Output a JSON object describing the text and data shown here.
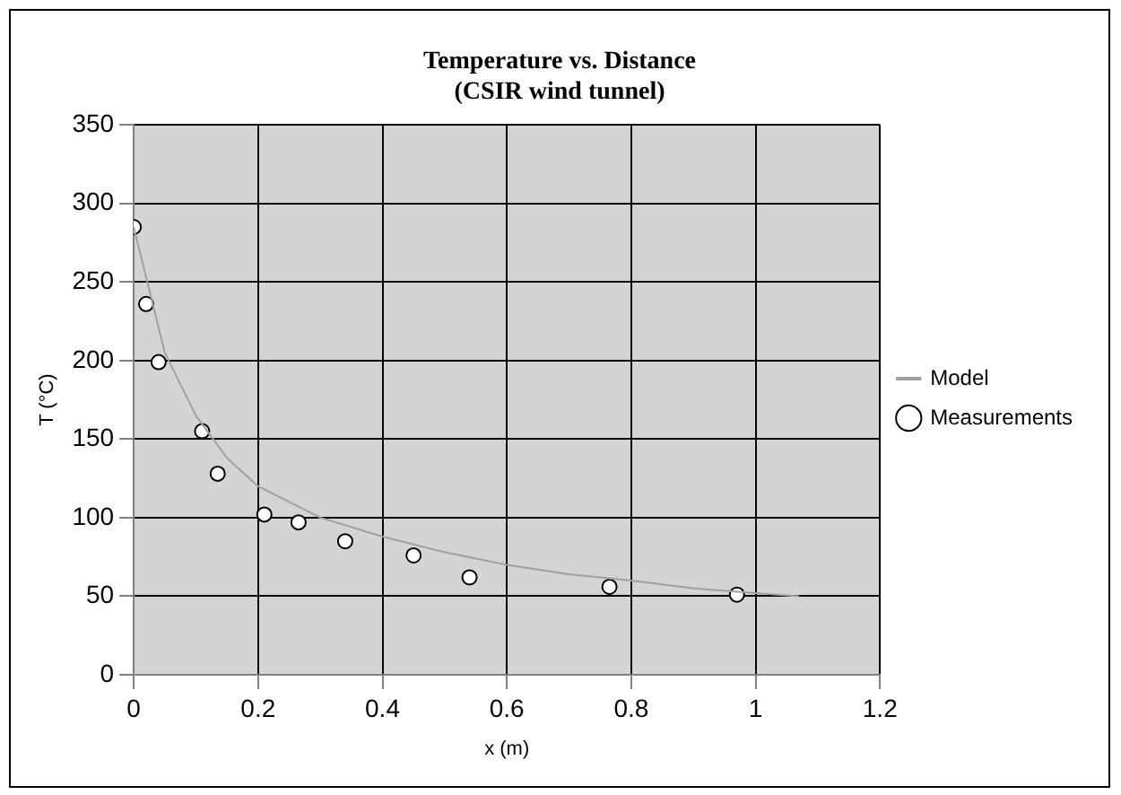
{
  "chart_data": {
    "type": "scatter",
    "title": "Temperature vs. Distance\n(CSIR wind tunnel)",
    "xlabel": "x (m)",
    "ylabel": "T (°C)",
    "xlim": [
      0,
      1.2
    ],
    "xticks": [
      0,
      0.2,
      0.4,
      0.6,
      0.8,
      1,
      1.2
    ],
    "ylim": [
      0,
      350
    ],
    "yticks": [
      0,
      50,
      100,
      150,
      200,
      250,
      300,
      350
    ],
    "grid": true,
    "legend": "right",
    "series": [
      {
        "name": "Model",
        "type": "line",
        "color": "#a0a0a0",
        "marker": "none",
        "line_style": "solid",
        "x": [
          0,
          0.05,
          0.1,
          0.15,
          0.2,
          0.3,
          0.4,
          0.5,
          0.6,
          0.7,
          0.8,
          0.9,
          1.0,
          1.07
        ],
        "values": [
          285,
          205,
          165,
          138,
          120,
          100,
          88,
          78,
          70,
          64,
          60,
          55,
          52,
          50
        ]
      },
      {
        "name": "Measurements",
        "type": "scatter",
        "color": "#ffffff",
        "marker": "circle",
        "x": [
          0,
          0.02,
          0.04,
          0.11,
          0.135,
          0.21,
          0.265,
          0.34,
          0.45,
          0.54,
          0.765,
          0.97
        ],
        "values": [
          285,
          236,
          199,
          155,
          128,
          102,
          97,
          85,
          76,
          62,
          56,
          51
        ]
      }
    ]
  }
}
